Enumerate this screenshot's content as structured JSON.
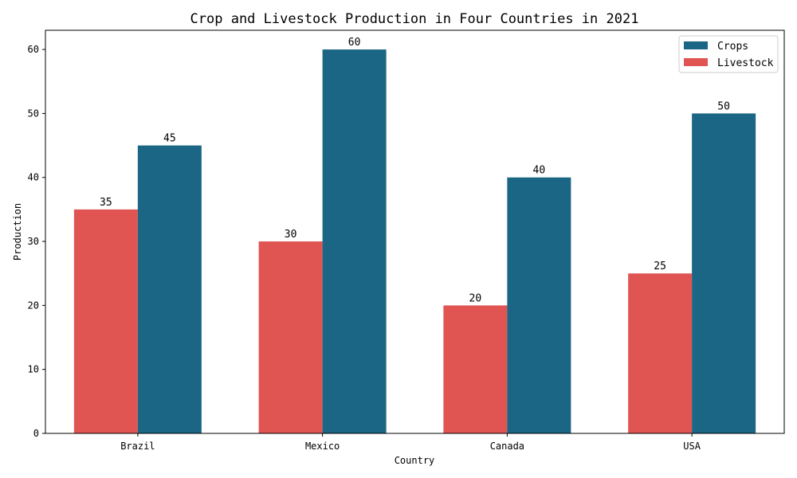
{
  "chart_data": {
    "type": "bar",
    "title": "Crop and Livestock Production in Four Countries in 2021",
    "xlabel": "Country",
    "ylabel": "Production",
    "categories": [
      "Brazil",
      "Mexico",
      "Canada",
      "USA"
    ],
    "ylim": [
      0,
      63
    ],
    "yticks": [
      0,
      10,
      20,
      30,
      40,
      50,
      60
    ],
    "grid": false,
    "legend_position": "top-right",
    "series": [
      {
        "name": "Livestock",
        "color": "#e05552",
        "values": [
          35,
          30,
          20,
          25
        ]
      },
      {
        "name": "Crops",
        "color": "#1b6685",
        "values": [
          45,
          60,
          40,
          50
        ]
      }
    ],
    "legend_order": [
      "Crops",
      "Livestock"
    ]
  }
}
